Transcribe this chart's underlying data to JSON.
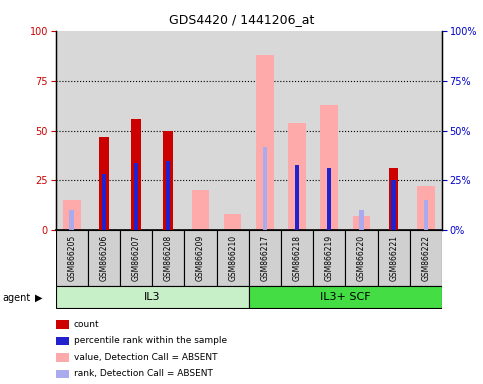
{
  "title": "GDS4420 / 1441206_at",
  "samples": [
    "GSM866205",
    "GSM866206",
    "GSM866207",
    "GSM866208",
    "GSM866209",
    "GSM866210",
    "GSM866217",
    "GSM866218",
    "GSM866219",
    "GSM866220",
    "GSM866221",
    "GSM866222"
  ],
  "groups": [
    {
      "label": "IL3",
      "start": 0,
      "end": 6,
      "color": "#c8f0c8"
    },
    {
      "label": "IL3+ SCF",
      "start": 6,
      "end": 12,
      "color": "#44dd44"
    }
  ],
  "count": [
    0,
    47,
    56,
    50,
    0,
    0,
    0,
    0,
    0,
    0,
    31,
    0
  ],
  "percentile_rank": [
    0,
    28,
    34,
    35,
    0,
    0,
    0,
    33,
    31,
    0,
    25,
    0
  ],
  "value_absent": [
    15,
    0,
    0,
    0,
    20,
    8,
    88,
    54,
    63,
    7,
    0,
    22
  ],
  "rank_absent": [
    10,
    0,
    0,
    0,
    0,
    0,
    42,
    0,
    0,
    10,
    0,
    15
  ],
  "ylim": [
    0,
    100
  ],
  "yticks": [
    0,
    25,
    50,
    75,
    100
  ],
  "count_color": "#cc0000",
  "percentile_color": "#2222cc",
  "value_absent_color": "#ffaaaa",
  "rank_absent_color": "#aaaaee",
  "background_color": "#ffffff",
  "plot_bg_color": "#d8d8d8",
  "ylabel_left_color": "#cc0000",
  "ylabel_right_color": "#0000cc",
  "font_size_ticks": 7,
  "font_size_labels": 7,
  "font_size_title": 9
}
